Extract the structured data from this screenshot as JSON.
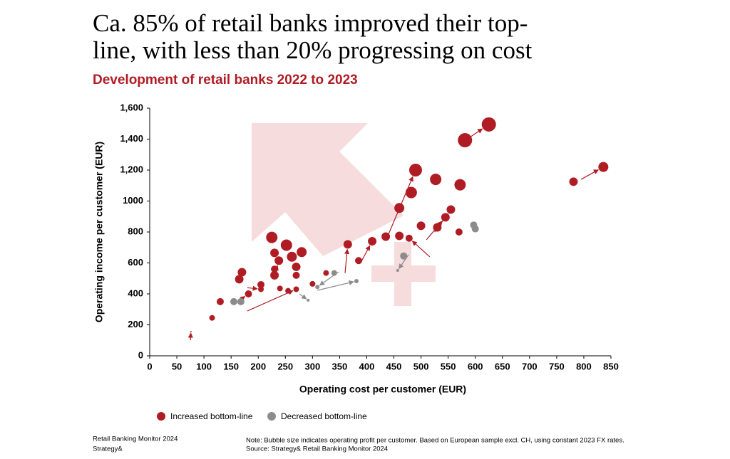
{
  "chart_data": {
    "type": "bubble",
    "title": "Ca. 85% of retail banks improved their top-line, with less than 20% progressing on cost",
    "subtitle": "Development of retail banks 2022 to 2023",
    "x_label": "Operating cost per customer (EUR)",
    "y_label": "Operating income per customer (EUR)",
    "xlim": [
      0,
      850
    ],
    "xticks": [
      0,
      50,
      100,
      150,
      200,
      250,
      300,
      350,
      400,
      450,
      500,
      550,
      600,
      650,
      700,
      750,
      800,
      850
    ],
    "ylim": [
      0,
      1600
    ],
    "yticks": [
      0,
      200,
      400,
      600,
      800,
      1000,
      {
        "value": 1200,
        "label": "1,200"
      },
      {
        "value": 1400,
        "label": "1,400"
      },
      {
        "value": 1600,
        "label": "1,600"
      }
    ],
    "legend": "bottom",
    "series": [
      {
        "name": "Increased bottom-line",
        "color": "#b01c24",
        "x": [
          836,
          781,
          625,
          581,
          490,
          527,
          572,
          482,
          460,
          555,
          545,
          530,
          570,
          478,
          500,
          460,
          410,
          435,
          385,
          365,
          325,
          300,
          280,
          270,
          262,
          252,
          225,
          230,
          238,
          230,
          230,
          270,
          205,
          205,
          240,
          255,
          270,
          170,
          165,
          182,
          130,
          115,
          76
        ],
        "values": [
          1220,
          1125,
          1495,
          1393,
          1200,
          1140,
          1105,
          1055,
          955,
          945,
          895,
          830,
          800,
          760,
          840,
          775,
          740,
          770,
          615,
          720,
          535,
          465,
          670,
          575,
          640,
          715,
          765,
          665,
          615,
          520,
          560,
          520,
          460,
          430,
          435,
          420,
          430,
          540,
          495,
          400,
          350,
          245,
          156
        ],
        "sizes": [
          7,
          6,
          10,
          10,
          9,
          8,
          8,
          8,
          7,
          6,
          6,
          6,
          5,
          5,
          6,
          6,
          6,
          6,
          5,
          6,
          4,
          4,
          7,
          6,
          7,
          8,
          8,
          6,
          6,
          6,
          5,
          5,
          5,
          4,
          4,
          4,
          4,
          6,
          6,
          5,
          5,
          4,
          1
        ],
        "x_start": [
          795,
          781,
          585,
          581,
          440,
          527,
          572,
          482,
          460,
          525,
          510,
          530,
          570,
          516,
          500,
          460,
          390,
          435,
          385,
          360,
          325,
          300,
          280,
          270,
          262,
          252,
          225,
          230,
          230,
          230,
          230,
          270,
          205,
          180,
          240,
          255,
          180,
          165,
          165,
          170,
          130,
          115,
          75
        ],
        "y_start": [
          1140,
          1125,
          1400,
          1393,
          785,
          1140,
          1105,
          1055,
          955,
          800,
          750,
          830,
          800,
          640,
          840,
          775,
          610,
          770,
          615,
          535,
          535,
          465,
          670,
          575,
          640,
          715,
          765,
          665,
          520,
          520,
          560,
          520,
          460,
          440,
          435,
          420,
          290,
          470,
          495,
          370,
          350,
          245,
          101
        ]
      },
      {
        "name": "Decreased bottom-line",
        "color": "#8c8c8c",
        "x": [
          600,
          597,
          468,
          457,
          340,
          309,
          381,
          155,
          168,
          292
        ],
        "values": [
          820,
          845,
          645,
          552,
          535,
          445,
          483,
          350,
          350,
          359
        ],
        "sizes": [
          5,
          5,
          5,
          2,
          4,
          3,
          3,
          5,
          5,
          2
        ],
        "x_start": [
          600,
          597,
          468,
          477,
          340,
          348,
          309,
          155,
          168,
          276
        ],
        "y_start": [
          820,
          845,
          645,
          653,
          535,
          542,
          423,
          350,
          350,
          400
        ]
      }
    ],
    "footer_left": [
      "Retail Banking Monitor 2024",
      "Strategy&"
    ],
    "footer_right": [
      "Note: Bubble size indicates operating profit per customer. Based on European sample excl. CH, using constant 2023 FX rates.",
      "Source: Strategy& Retail Banking Monitor 2024"
    ]
  }
}
